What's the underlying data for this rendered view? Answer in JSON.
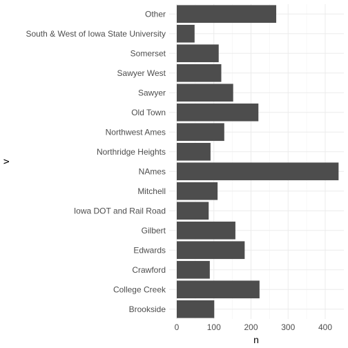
{
  "chart_data": {
    "type": "bar",
    "orientation": "horizontal",
    "xlabel": "n",
    "ylabel": "v",
    "xlim": [
      0,
      440
    ],
    "xticks": [
      0,
      100,
      200,
      300,
      400
    ],
    "grid": true,
    "bar_color": "#4d4d4d",
    "categories": [
      "Other",
      "South & West of Iowa State University",
      "Somerset",
      "Sawyer West",
      "Sawyer",
      "Old Town",
      "Northwest Ames",
      "Northridge Heights",
      "NAmes",
      "Mitchell",
      "Iowa DOT and Rail Road",
      "Gilbert",
      "Edwards",
      "Crawford",
      "College Creek",
      "Brookside"
    ],
    "values": [
      268,
      48,
      113,
      120,
      152,
      220,
      128,
      91,
      436,
      110,
      86,
      158,
      183,
      89,
      223,
      101
    ]
  }
}
